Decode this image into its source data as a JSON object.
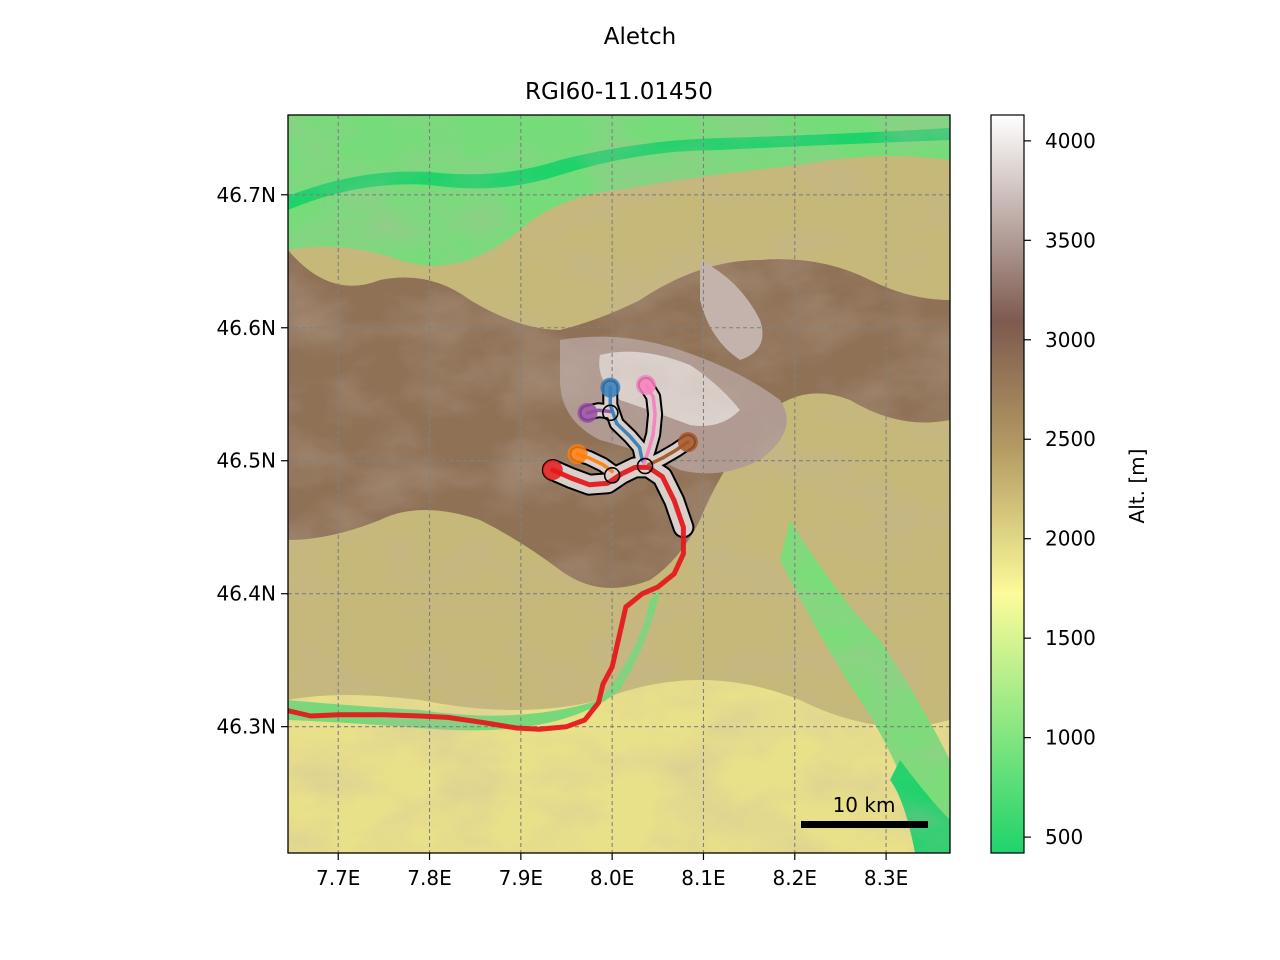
{
  "title": "Aletch",
  "subtitle": "RGI60-11.01450",
  "x_axis": {
    "range": [
      7.645,
      8.37
    ],
    "ticks": [
      {
        "value": 7.7,
        "label": "7.7E"
      },
      {
        "value": 7.8,
        "label": "7.8E"
      },
      {
        "value": 7.9,
        "label": "7.9E"
      },
      {
        "value": 8.0,
        "label": "8.0E"
      },
      {
        "value": 8.1,
        "label": "8.1E"
      },
      {
        "value": 8.2,
        "label": "8.2E"
      },
      {
        "value": 8.3,
        "label": "8.3E"
      }
    ]
  },
  "y_axis": {
    "range": [
      46.205,
      46.76
    ],
    "ticks": [
      {
        "value": 46.3,
        "label": "46.3N"
      },
      {
        "value": 46.4,
        "label": "46.4N"
      },
      {
        "value": 46.5,
        "label": "46.5N"
      },
      {
        "value": 46.6,
        "label": "46.6N"
      },
      {
        "value": 46.7,
        "label": "46.7N"
      }
    ]
  },
  "grid": true,
  "scale_bar": {
    "label": "10 km"
  },
  "colorbar": {
    "label": "Alt. [m]",
    "range": [
      420,
      4130
    ],
    "ticks": [
      {
        "value": 500,
        "label": "500"
      },
      {
        "value": 1000,
        "label": "1000"
      },
      {
        "value": 1500,
        "label": "1500"
      },
      {
        "value": 2000,
        "label": "2000"
      },
      {
        "value": 2500,
        "label": "2500"
      },
      {
        "value": 3000,
        "label": "3000"
      },
      {
        "value": 3500,
        "label": "3500"
      },
      {
        "value": 4000,
        "label": "4000"
      }
    ],
    "colors": [
      "#1fd36b",
      "#fdfb9a",
      "#b39a63",
      "#7d5a4f",
      "#ffffff"
    ]
  },
  "flowlines": [
    {
      "color": "#e41a1c",
      "points": [
        [
          7.935,
          46.493
        ],
        [
          7.955,
          46.487
        ],
        [
          7.975,
          46.482
        ],
        [
          7.995,
          46.483
        ],
        [
          8.01,
          46.49
        ],
        [
          8.025,
          46.495
        ],
        [
          8.04,
          46.495
        ],
        [
          8.055,
          46.488
        ],
        [
          8.068,
          46.47
        ],
        [
          8.078,
          46.45
        ],
        [
          8.078,
          46.43
        ],
        [
          8.068,
          46.415
        ],
        [
          8.05,
          46.405
        ],
        [
          8.033,
          46.4
        ],
        [
          8.015,
          46.39
        ],
        [
          8.01,
          46.375
        ],
        [
          8.0,
          46.345
        ],
        [
          7.99,
          46.332
        ],
        [
          7.985,
          46.318
        ],
        [
          7.97,
          46.305
        ],
        [
          7.95,
          46.3
        ],
        [
          7.92,
          46.298
        ],
        [
          7.895,
          46.299
        ],
        [
          7.86,
          46.303
        ],
        [
          7.82,
          46.307
        ],
        [
          7.79,
          46.308
        ],
        [
          7.75,
          46.309
        ],
        [
          7.7,
          46.309
        ],
        [
          7.67,
          46.308
        ],
        [
          7.645,
          46.312
        ]
      ]
    },
    {
      "color": "#ff7f0e",
      "points": [
        [
          7.962,
          46.505
        ],
        [
          7.975,
          46.502
        ],
        [
          7.99,
          46.497
        ],
        [
          8.0,
          46.492
        ]
      ]
    },
    {
      "color": "#984ea3",
      "points": [
        [
          7.973,
          46.536
        ],
        [
          7.985,
          46.538
        ],
        [
          7.998,
          46.537
        ]
      ]
    },
    {
      "color": "#377eb8",
      "points": [
        [
          7.998,
          46.555
        ],
        [
          7.998,
          46.542
        ],
        [
          8.005,
          46.528
        ],
        [
          8.02,
          46.518
        ],
        [
          8.03,
          46.51
        ],
        [
          8.033,
          46.5
        ]
      ]
    },
    {
      "color": "#f781bf",
      "points": [
        [
          8.037,
          46.557
        ],
        [
          8.045,
          46.548
        ],
        [
          8.047,
          46.535
        ],
        [
          8.045,
          46.52
        ],
        [
          8.04,
          46.508
        ],
        [
          8.035,
          46.498
        ]
      ]
    },
    {
      "color": "#a65628",
      "points": [
        [
          8.083,
          46.514
        ],
        [
          8.07,
          46.508
        ],
        [
          8.055,
          46.502
        ],
        [
          8.04,
          46.497
        ]
      ]
    }
  ],
  "junctions": [
    {
      "lon": 7.998,
      "lat": 46.536
    },
    {
      "lon": 8.0,
      "lat": 46.489
    },
    {
      "lon": 8.036,
      "lat": 46.496
    }
  ]
}
